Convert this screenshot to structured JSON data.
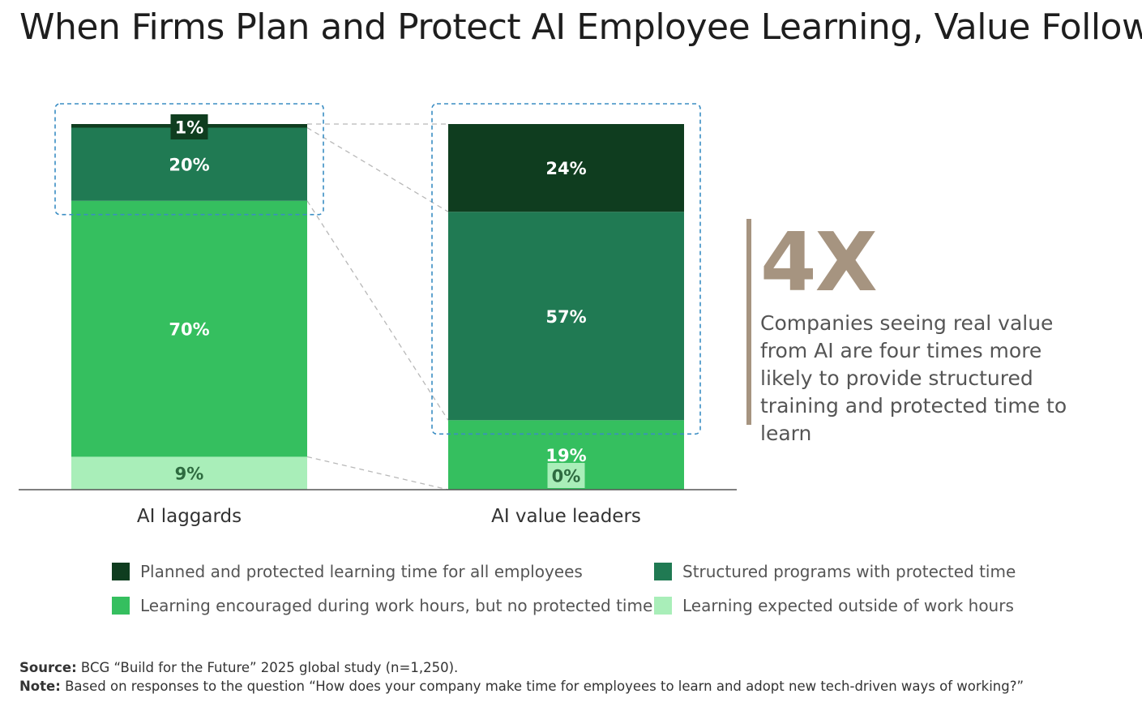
{
  "title": "When Firms Plan and Protect AI Employee Learning, Value Follows",
  "colors": {
    "planned": "#0f3d1f",
    "structured": "#207a53",
    "encouraged": "#35bf5f",
    "outside": "#a9eeb9",
    "accent": "#a69480",
    "highlight": "#3a8dc3"
  },
  "chart_data": {
    "type": "bar",
    "stacked": true,
    "unit": "%",
    "ylim": [
      0,
      100
    ],
    "categories": [
      "AI laggards",
      "AI value leaders"
    ],
    "series": [
      {
        "name": "Learning expected outside of work hours",
        "key": "outside",
        "values": [
          9,
          0
        ]
      },
      {
        "name": "Learning encouraged during work hours, but no protected time",
        "key": "encouraged",
        "values": [
          70,
          19
        ]
      },
      {
        "name": "Structured programs with protected time",
        "key": "structured",
        "values": [
          20,
          57
        ]
      },
      {
        "name": "Planned and protected learning time for all employees",
        "key": "planned",
        "values": [
          1,
          24
        ]
      }
    ],
    "data_labels": [
      [
        "9%",
        "70%",
        "20%",
        "1%"
      ],
      [
        "0%",
        "19%",
        "57%",
        "24%"
      ]
    ],
    "legend": [
      {
        "label": "Planned and protected learning time for all employees",
        "key": "planned"
      },
      {
        "label": "Structured programs with protected time",
        "key": "structured"
      },
      {
        "label": "Learning encouraged during work hours, but no protected time",
        "key": "encouraged"
      },
      {
        "label": "Learning expected outside of work hours",
        "key": "outside"
      }
    ],
    "grid": false
  },
  "callout": {
    "big": "4X",
    "text": "Companies seeing real value from AI are four times more likely to provide structured training and protected time to learn"
  },
  "footer": {
    "source_label": "Source:",
    "source_text": " BCG “Build for the Future” 2025 global study (n=1,250).",
    "note_label": "Note:",
    "note_text": " Based on responses to the question “How does your company make time for employees to learn and adopt new tech-driven ways of working?”"
  }
}
